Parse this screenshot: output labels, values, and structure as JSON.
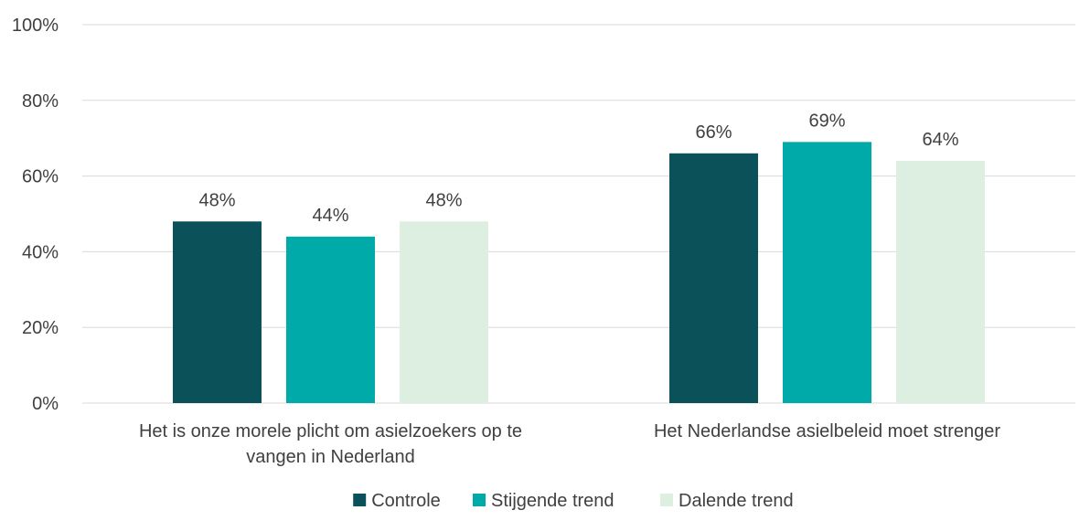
{
  "chart_data": {
    "type": "bar",
    "categories": [
      [
        "Het is onze morele plicht om asielzoekers op te",
        "vangen in Nederland"
      ],
      [
        "Het Nederlandse asielbeleid moet strenger"
      ]
    ],
    "series": [
      {
        "name": "Controle",
        "color": "#0b5159",
        "values": [
          48,
          66
        ],
        "labels": [
          "48%",
          "66%"
        ]
      },
      {
        "name": "Stijgende trend",
        "color": "#00aaa8",
        "values": [
          44,
          69
        ],
        "labels": [
          "44%",
          "69%"
        ]
      },
      {
        "name": "Dalende trend",
        "color": "#dcefe0",
        "values": [
          48,
          64
        ],
        "labels": [
          "48%",
          "64%"
        ]
      }
    ],
    "ylim": [
      0,
      100
    ],
    "yticks": [
      0,
      20,
      40,
      60,
      80,
      100
    ],
    "ytick_labels": [
      "0%",
      "20%",
      "40%",
      "60%",
      "80%",
      "100%"
    ],
    "grid": true,
    "legend_position": "bottom"
  }
}
